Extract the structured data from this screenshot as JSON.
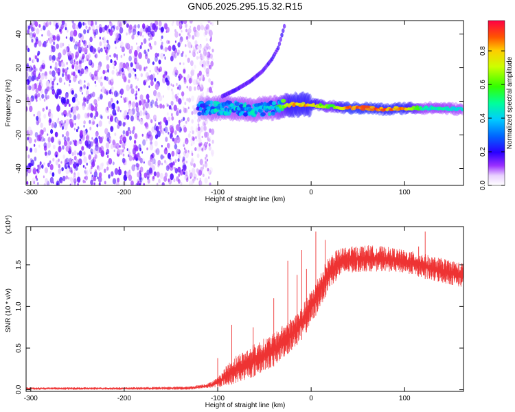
{
  "title": "GN05.2025.295.15.32.R15",
  "chart_data": [
    {
      "type": "heatmap",
      "xlabel": "Height of straight line (km)",
      "ylabel": "Frequency (Hz)",
      "xlim": [
        -305,
        163
      ],
      "ylim": [
        -50,
        48
      ],
      "xticks": [
        "-300",
        "-200",
        "-100",
        "0",
        "100"
      ],
      "xtick_values": [
        -300,
        -200,
        -100,
        0,
        100
      ],
      "yticks": [
        "-40",
        "-20",
        "0",
        "20",
        "40"
      ],
      "ytick_values": [
        -40,
        -20,
        0,
        20,
        40
      ],
      "colorbar": {
        "label": "Normalized spectral amplitude",
        "range": [
          0,
          0.98
        ],
        "ticks": [
          "0.0",
          "0.2",
          "0.4",
          "0.6",
          "0.8"
        ],
        "tick_values": [
          0.0,
          0.2,
          0.4,
          0.6,
          0.8
        ]
      },
      "noise_region_x": [
        -305,
        -115
      ],
      "noise_amplitude": 0.15,
      "signal_line": [
        {
          "x": -120,
          "y": -4,
          "amp": 0.35
        },
        {
          "x": -100,
          "y": -4,
          "amp": 0.45
        },
        {
          "x": -80,
          "y": -4,
          "amp": 0.45
        },
        {
          "x": -60,
          "y": -5,
          "amp": 0.45
        },
        {
          "x": -40,
          "y": -4,
          "amp": 0.45
        },
        {
          "x": -20,
          "y": -2,
          "amp": 0.85
        },
        {
          "x": 0,
          "y": -2,
          "amp": 0.85
        },
        {
          "x": 20,
          "y": -3,
          "amp": 0.6
        },
        {
          "x": 40,
          "y": -4,
          "amp": 0.95
        },
        {
          "x": 60,
          "y": -4,
          "amp": 0.95
        },
        {
          "x": 80,
          "y": -5,
          "amp": 0.9
        },
        {
          "x": 100,
          "y": -4,
          "amp": 0.9
        },
        {
          "x": 120,
          "y": -4,
          "amp": 0.5
        },
        {
          "x": 140,
          "y": -4,
          "amp": 0.5
        },
        {
          "x": 163,
          "y": -5,
          "amp": 0.45
        }
      ],
      "harmonic_track": [
        {
          "x": -95,
          "y": 3
        },
        {
          "x": -80,
          "y": 7
        },
        {
          "x": -65,
          "y": 12
        },
        {
          "x": -52,
          "y": 18
        },
        {
          "x": -42,
          "y": 25
        },
        {
          "x": -35,
          "y": 32
        },
        {
          "x": -28,
          "y": 46
        }
      ]
    },
    {
      "type": "line",
      "xlabel": "Height of straight line (km)",
      "ylabel": "SNR (10 * v/v)",
      "y_multiplier_label": "(x10⁴)",
      "xlim": [
        -305,
        163
      ],
      "ylim": [
        -0.02,
        1.96
      ],
      "xticks": [
        "-300",
        "-200",
        "-100",
        "0",
        "100"
      ],
      "xtick_values": [
        -300,
        -200,
        -100,
        0,
        100
      ],
      "yticks": [
        "0.0",
        "0.5",
        "1.0",
        "1.5"
      ],
      "ytick_values": [
        0.0,
        0.5,
        1.0,
        1.5
      ],
      "color": "#ee3333",
      "series": [
        {
          "x": [
            -305,
            -200,
            -130,
            -110,
            -100,
            -90,
            -80,
            -70,
            -60,
            -50,
            -40,
            -30,
            -20,
            -10,
            0,
            10,
            20,
            30,
            40,
            60,
            80,
            100,
            110,
            120,
            130,
            150,
            163
          ],
          "lower": [
            0.0,
            0.0,
            0.0,
            0.02,
            0.03,
            0.05,
            0.08,
            0.12,
            0.16,
            0.22,
            0.28,
            0.38,
            0.48,
            0.6,
            0.78,
            1.0,
            1.22,
            1.35,
            1.4,
            1.42,
            1.42,
            1.4,
            1.38,
            1.34,
            1.3,
            1.26,
            1.22
          ],
          "upper": [
            0.03,
            0.03,
            0.04,
            0.08,
            0.15,
            0.3,
            0.42,
            0.48,
            0.56,
            0.62,
            0.68,
            0.78,
            0.88,
            1.0,
            1.2,
            1.42,
            1.62,
            1.7,
            1.72,
            1.74,
            1.72,
            1.68,
            1.66,
            1.64,
            1.6,
            1.56,
            1.52
          ]
        }
      ],
      "spikes": [
        {
          "x": -100,
          "y": 0.38
        },
        {
          "x": -85,
          "y": 0.78
        },
        {
          "x": -62,
          "y": 0.75
        },
        {
          "x": -40,
          "y": 1.1
        },
        {
          "x": -25,
          "y": 1.55
        },
        {
          "x": -15,
          "y": 1.38
        },
        {
          "x": -10,
          "y": 1.68
        },
        {
          "x": -5,
          "y": 1.45
        },
        {
          "x": 5,
          "y": 1.9
        },
        {
          "x": 15,
          "y": 1.8
        },
        {
          "x": 115,
          "y": 1.72
        },
        {
          "x": 122,
          "y": 1.9
        }
      ]
    }
  ]
}
